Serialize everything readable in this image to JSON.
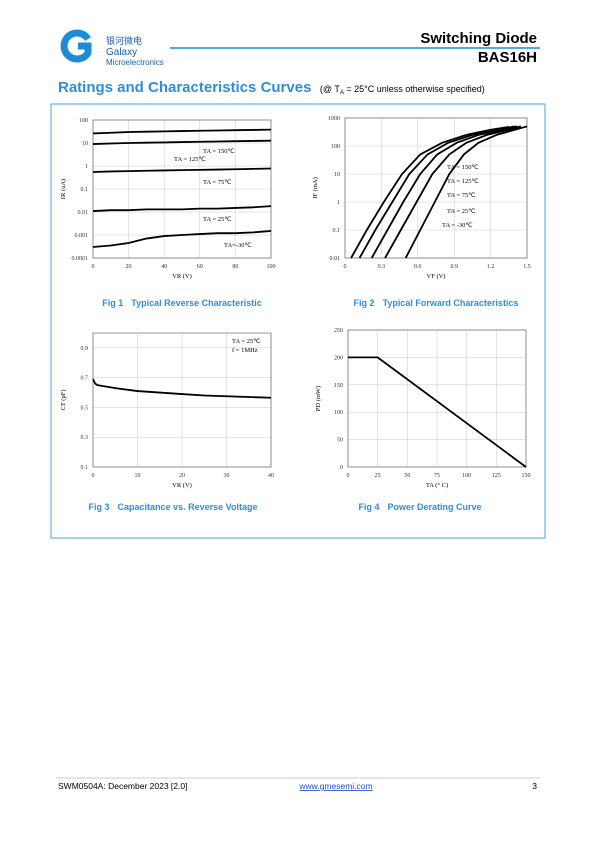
{
  "header": {
    "logo_cn": "银河微电",
    "logo_name": "Galaxy",
    "logo_sub": "Microelectronics",
    "title": "Switching Diode",
    "part": "BAS16H"
  },
  "section": {
    "title": "Ratings and Characteristics Curves",
    "note_pre": "(@ T",
    "note_sub": "A",
    "note_post": " = 25°C unless otherwise specified)"
  },
  "chart_data": [
    {
      "type": "line",
      "figure": "Fig 1",
      "caption": "Typical Reverse Characteristic",
      "xlabel": "VR (V)",
      "ylabel": "IR (uA)",
      "log_y": true,
      "grid": true,
      "color": "#000000",
      "x": [
        0,
        10,
        20,
        30,
        40,
        50,
        60,
        70,
        80,
        90,
        100
      ],
      "xlim": [
        0,
        100
      ],
      "xticks": [
        0,
        20,
        40,
        60,
        80,
        100
      ],
      "ylim": [
        0.0001,
        100
      ],
      "yticks": [
        0.0001,
        0.001,
        0.01,
        0.1,
        1,
        10,
        100
      ],
      "series": [
        {
          "name": "TA = 150℃",
          "values": [
            26,
            28,
            30,
            31,
            32,
            33,
            34,
            35,
            36,
            37,
            38
          ]
        },
        {
          "name": "TA = 125℃",
          "values": [
            9,
            9.5,
            10,
            10.3,
            10.6,
            11,
            11.3,
            11.6,
            12,
            12.3,
            12.6
          ]
        },
        {
          "name": "TA = 75℃",
          "values": [
            0.55,
            0.58,
            0.6,
            0.62,
            0.64,
            0.66,
            0.68,
            0.7,
            0.72,
            0.75,
            0.78
          ]
        },
        {
          "name": "TA = 25℃",
          "values": [
            0.011,
            0.012,
            0.012,
            0.013,
            0.013,
            0.013,
            0.014,
            0.014,
            0.015,
            0.016,
            0.018
          ]
        },
        {
          "name": "TA=-30℃",
          "values": [
            0.0003,
            0.00035,
            0.00045,
            0.0007,
            0.0009,
            0.001,
            0.0011,
            0.0012,
            0.0012,
            0.0013,
            0.0015
          ]
        }
      ]
    },
    {
      "type": "line",
      "figure": "Fig 2",
      "caption": "Typical Forward Characteristics",
      "xlabel": "VF (V)",
      "ylabel": "IF (mA)",
      "log_y": true,
      "grid": true,
      "color": "#000000",
      "xlim": [
        0,
        1.5
      ],
      "xticks": [
        0,
        0.3,
        0.6,
        0.9,
        1.2,
        1.5
      ],
      "ylim": [
        0.01,
        1000
      ],
      "yticks": [
        0.01,
        0.1,
        1,
        10,
        100,
        1000
      ],
      "series": [
        {
          "name": "TA = 150℃",
          "x": [
            0.05,
            0.18,
            0.32,
            0.47,
            0.62,
            0.8,
            1.0,
            1.2,
            1.35
          ],
          "values": [
            0.01,
            0.1,
            1,
            10,
            50,
            130,
            250,
            380,
            480
          ]
        },
        {
          "name": "TA = 125℃",
          "x": [
            0.12,
            0.25,
            0.39,
            0.53,
            0.68,
            0.85,
            1.05,
            1.25,
            1.4
          ],
          "values": [
            0.01,
            0.1,
            1,
            10,
            50,
            130,
            250,
            380,
            500
          ]
        },
        {
          "name": "TA = 75℃",
          "x": [
            0.22,
            0.35,
            0.48,
            0.62,
            0.76,
            0.92,
            1.1,
            1.3,
            1.42
          ],
          "values": [
            0.01,
            0.1,
            1,
            10,
            50,
            130,
            250,
            380,
            500
          ]
        },
        {
          "name": "TA = 25℃",
          "x": [
            0.33,
            0.46,
            0.59,
            0.72,
            0.86,
            1.0,
            1.17,
            1.35,
            1.45
          ],
          "values": [
            0.01,
            0.1,
            1,
            10,
            50,
            130,
            250,
            380,
            500
          ]
        },
        {
          "name": "TA = -30℃",
          "x": [
            0.5,
            0.62,
            0.74,
            0.86,
            0.98,
            1.1,
            1.25,
            1.4,
            1.5
          ],
          "values": [
            0.01,
            0.1,
            1,
            10,
            50,
            130,
            250,
            380,
            500
          ]
        }
      ]
    },
    {
      "type": "line",
      "figure": "Fig 3",
      "caption": "Capacitance vs. Reverse Voltage",
      "xlabel": "VR (V)",
      "ylabel": "CT (pF)",
      "log_y": false,
      "grid": true,
      "color": "#000000",
      "annotations": [
        "TA = 25℃",
        "f = 1MHz"
      ],
      "x": [
        0,
        0.5,
        1,
        5,
        10,
        15,
        20,
        25,
        30,
        35,
        40
      ],
      "xlim": [
        0,
        40
      ],
      "xticks": [
        0,
        10,
        20,
        30,
        40
      ],
      "ylim": [
        0.1,
        1.0
      ],
      "yticks": [
        0.1,
        0.3,
        0.5,
        0.7,
        0.9
      ],
      "series": [
        {
          "values": [
            0.69,
            0.66,
            0.65,
            0.63,
            0.61,
            0.6,
            0.59,
            0.58,
            0.575,
            0.57,
            0.565
          ]
        }
      ]
    },
    {
      "type": "line",
      "figure": "Fig 4",
      "caption": "Power Derating Curve",
      "xlabel": "TA (° C)",
      "ylabel": "PD (mW)",
      "log_y": false,
      "grid": true,
      "color": "#000000",
      "x": [
        0,
        25,
        150
      ],
      "xlim": [
        0,
        150
      ],
      "xticks": [
        0,
        25,
        50,
        75,
        100,
        125,
        150
      ],
      "ylim": [
        0,
        250
      ],
      "yticks": [
        0,
        50,
        100,
        150,
        200,
        250
      ],
      "series": [
        {
          "values": [
            200,
            200,
            0
          ]
        }
      ]
    }
  ],
  "footer": {
    "doc": "SWM0504A: December 2023 [2.0]",
    "url": "www.gmesemi.com",
    "page": "3"
  }
}
